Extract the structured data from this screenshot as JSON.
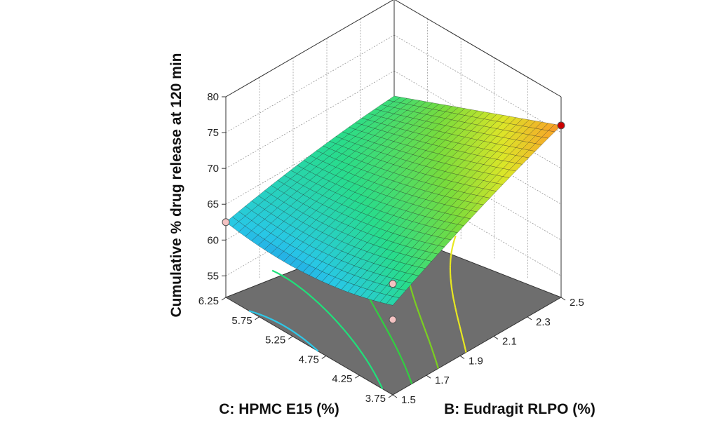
{
  "chart_data": {
    "type": "surface3d",
    "zlabel": "Cumulative % drug release at 120 min",
    "xlabel": "C: HPMC E15 (%)",
    "ylabel": "B: Eudragit RLPO (%)",
    "x_ticks": [
      "3.75",
      "4.25",
      "4.75",
      "5.25",
      "5.75",
      "6.25"
    ],
    "x_values": [
      3.75,
      4.25,
      4.75,
      5.25,
      5.75,
      6.25
    ],
    "y_ticks": [
      "1.5",
      "1.7",
      "1.9",
      "2.1",
      "2.3",
      "2.5"
    ],
    "y_values": [
      1.5,
      1.7,
      1.9,
      2.1,
      2.3,
      2.5
    ],
    "z_ticks": [
      "55",
      "60",
      "65",
      "70",
      "75",
      "80"
    ],
    "z_values": [
      55,
      60,
      65,
      70,
      75,
      80
    ],
    "xlim": [
      3.75,
      6.25
    ],
    "ylim": [
      1.5,
      2.5
    ],
    "zlim": [
      52,
      80
    ],
    "corner_values": {
      "c_low_b_low": 64.5,
      "c_low_b_high": 76.0,
      "c_high_b_low": 62.5,
      "c_high_b_high": 66.5
    },
    "design_points": [
      {
        "c": 6.25,
        "b": 1.5,
        "z": 62.5,
        "color": "#f4c2c2"
      },
      {
        "c": 3.75,
        "b": 1.5,
        "z": 62.5,
        "color": "#f4c2c2"
      },
      {
        "c": 3.75,
        "b": 1.5,
        "z": 67.5,
        "color": "#f4c2c2"
      },
      {
        "c": 3.75,
        "b": 2.5,
        "z": 76.0,
        "color": "#cc0000"
      }
    ],
    "contour_levels": [
      60,
      62,
      64,
      66,
      68,
      70
    ],
    "contour_colors": [
      "#1e3cdc",
      "#2ec8e8",
      "#20e07a",
      "#30d040",
      "#7ad020",
      "#e8e820"
    ],
    "floor_color": "#6e6e6e",
    "grid": true
  }
}
